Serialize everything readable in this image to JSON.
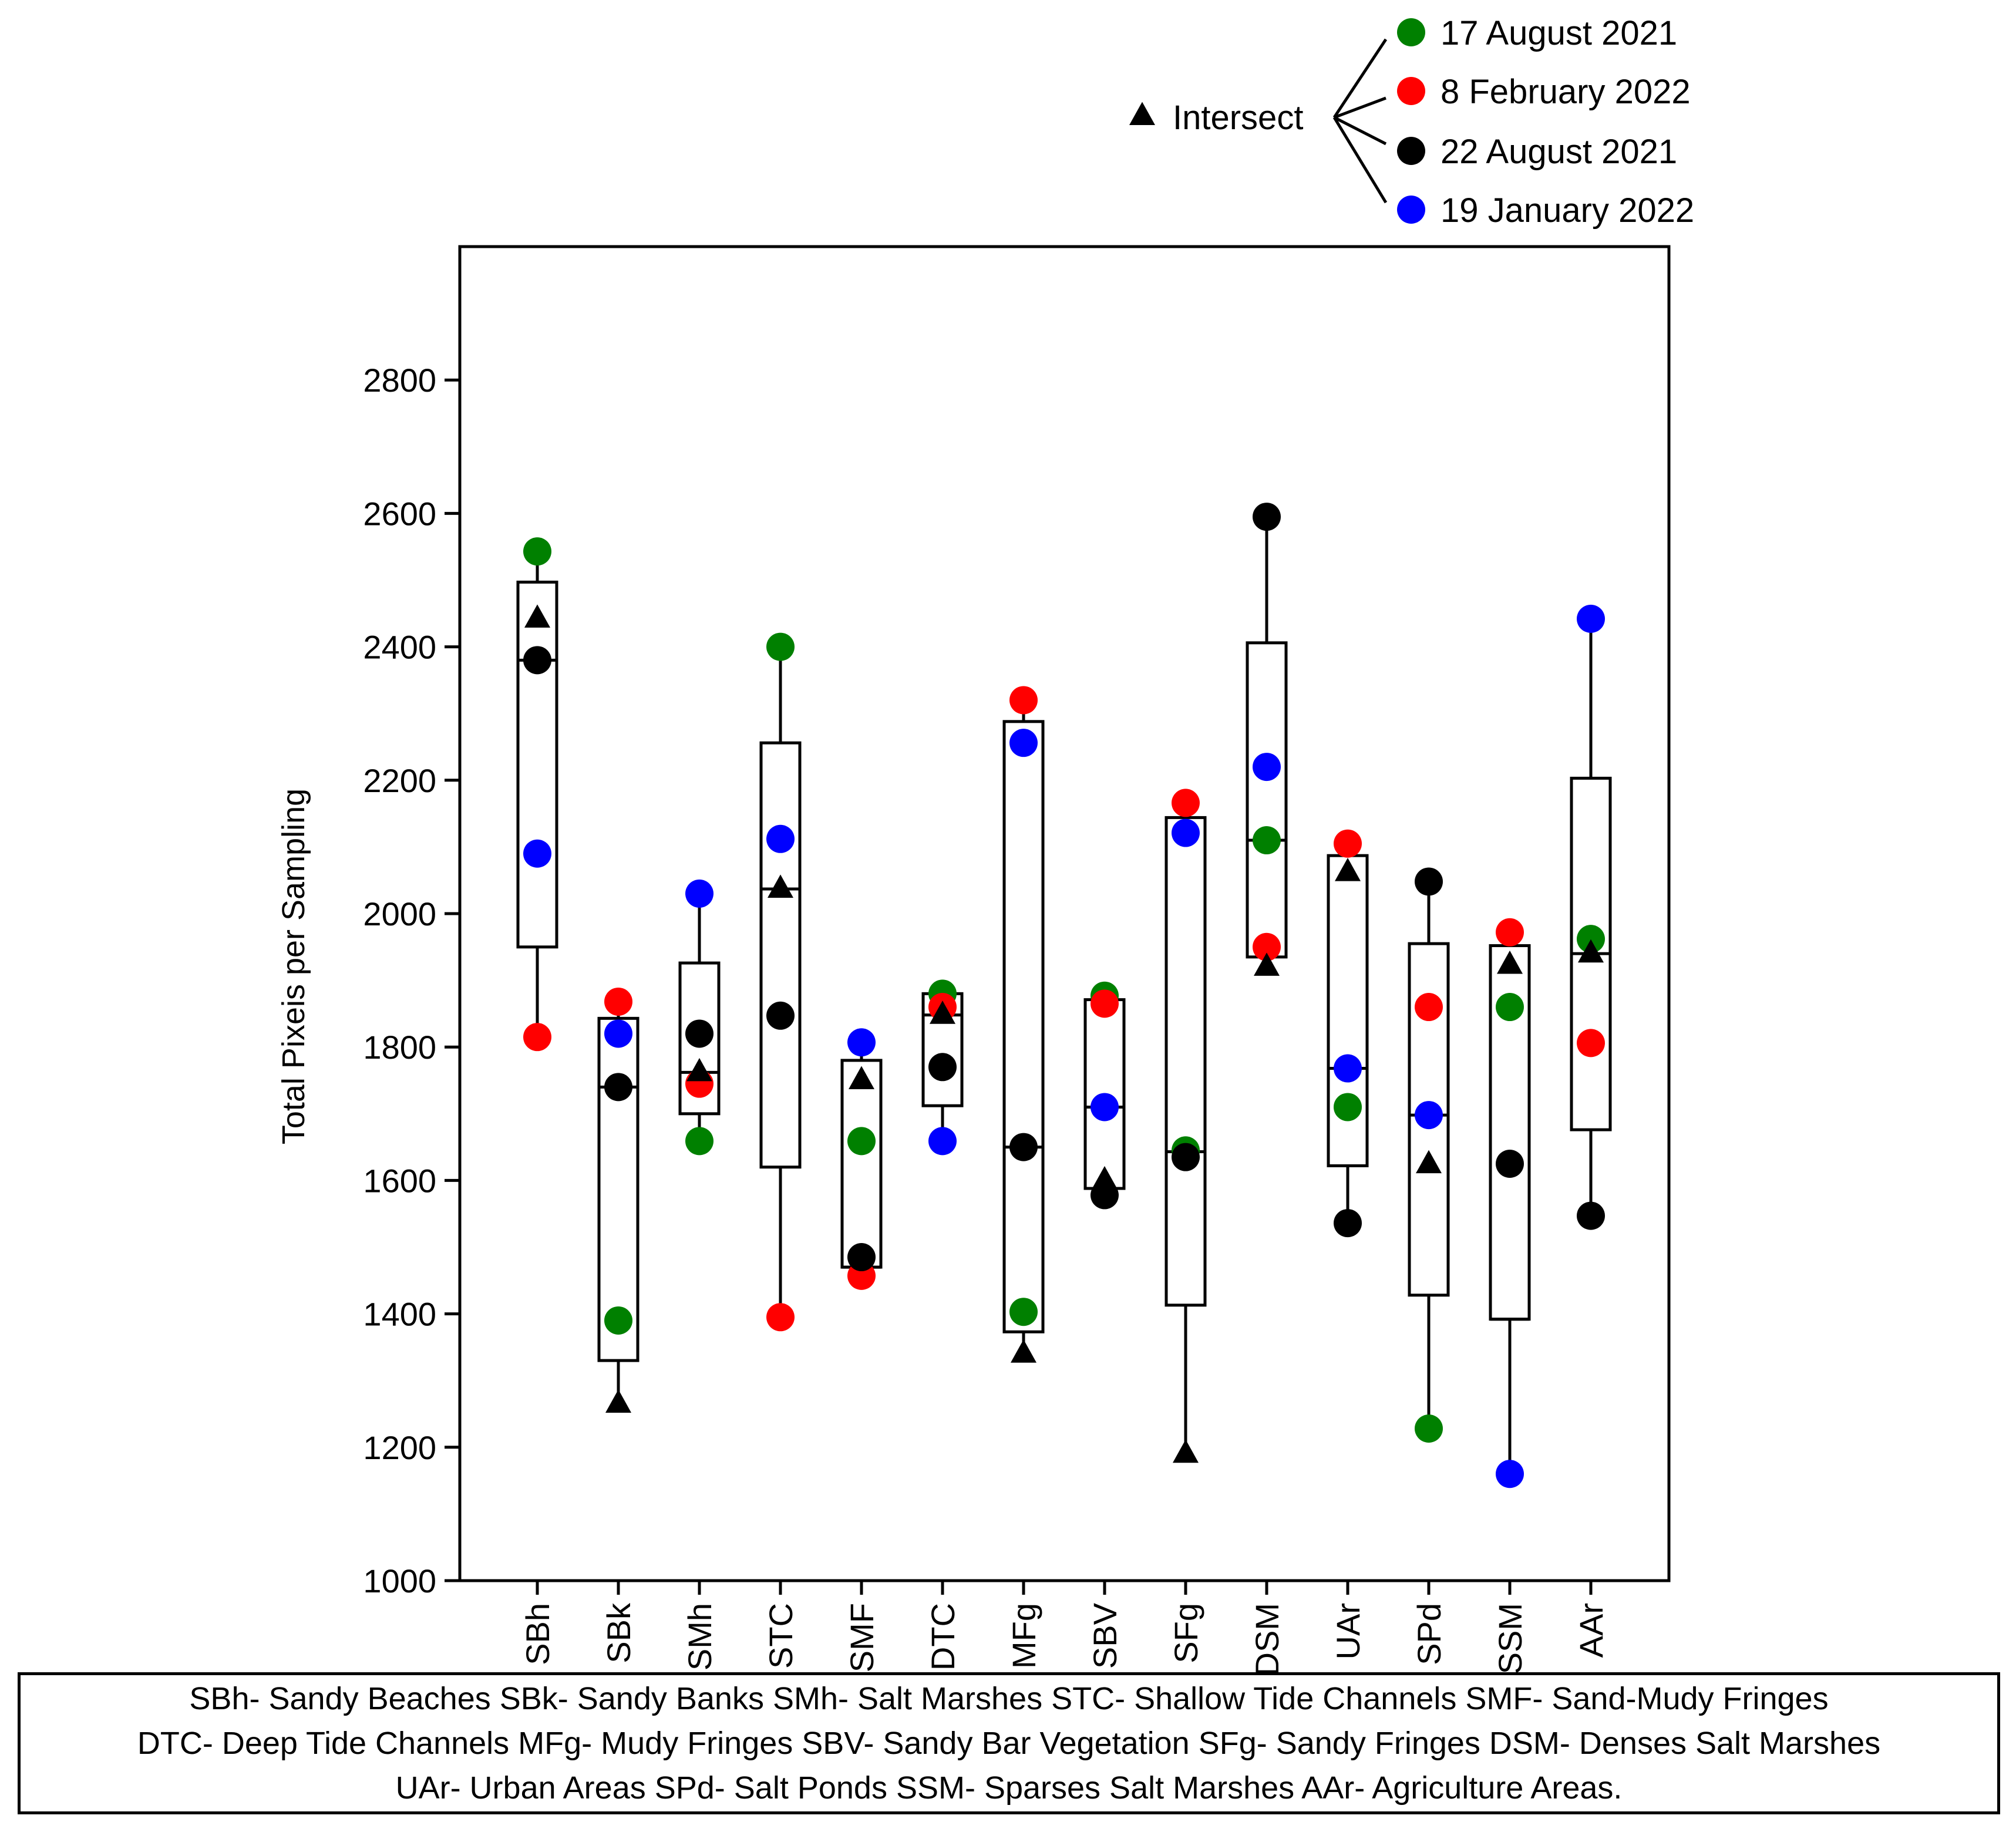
{
  "chart_data": {
    "type": "box",
    "title": "",
    "xlabel": "",
    "ylabel": "Total Pixeis per Sampling",
    "ylim": [
      1000,
      3000
    ],
    "yticks": [
      1000,
      1200,
      1400,
      1600,
      1800,
      2000,
      2200,
      2400,
      2600,
      2800
    ],
    "grid": false,
    "categories": [
      "SBh",
      "SBk",
      "SMh",
      "STC",
      "SMF",
      "DTC",
      "MFg",
      "SBV",
      "SFg",
      "DSM",
      "UAr",
      "SPd",
      "SSM",
      "AAr"
    ],
    "boxes": [
      {
        "q1": 1950,
        "median": 2380,
        "q3": 2497,
        "wmin": 1815,
        "wmax": 2543
      },
      {
        "q1": 1330,
        "median": 1740,
        "q3": 1843,
        "wmin": 1265,
        "wmax": 1868
      },
      {
        "q1": 1700,
        "median": 1762,
        "q3": 1926,
        "wmin": 1659,
        "wmax": 2030
      },
      {
        "q1": 1620,
        "median": 2037,
        "q3": 2256,
        "wmin": 1395,
        "wmax": 2400
      },
      {
        "q1": 1470,
        "median": 1470,
        "q3": 1780,
        "wmin": 1457,
        "wmax": 1807
      },
      {
        "q1": 1712,
        "median": 1848,
        "q3": 1880,
        "wmin": 1659,
        "wmax": 1880
      },
      {
        "q1": 1373,
        "median": 1650,
        "q3": 2288,
        "wmin": 1340,
        "wmax": 2320
      },
      {
        "q1": 1588,
        "median": 1710,
        "q3": 1871,
        "wmin": 1578,
        "wmax": 1877
      },
      {
        "q1": 1413,
        "median": 1643,
        "q3": 2144,
        "wmin": 1190,
        "wmax": 2166
      },
      {
        "q1": 1935,
        "median": 2110,
        "q3": 2406,
        "wmin": 1920,
        "wmax": 2595
      },
      {
        "q1": 1622,
        "median": 1768,
        "q3": 2087,
        "wmin": 1536,
        "wmax": 2105
      },
      {
        "q1": 1428,
        "median": 1698,
        "q3": 1955,
        "wmin": 1228,
        "wmax": 2048
      },
      {
        "q1": 1392,
        "median": 1392,
        "q3": 1952,
        "wmin": 1160,
        "wmax": 1972
      },
      {
        "q1": 1676,
        "median": 1940,
        "q3": 2203,
        "wmin": 1547,
        "wmax": 2442
      }
    ],
    "series": [
      {
        "name": "17 August 2021",
        "color": "#008000",
        "marker": "circle",
        "values": [
          2543,
          1390,
          1659,
          2400,
          1659,
          1880,
          1403,
          1877,
          1645,
          2110,
          1710,
          1228,
          1860,
          1962
        ]
      },
      {
        "name": "8 February 2022",
        "color": "#ff0000",
        "marker": "circle",
        "values": [
          1815,
          1868,
          1745,
          1395,
          1457,
          1860,
          2320,
          1865,
          2166,
          1950,
          2105,
          1860,
          1972,
          1806
        ]
      },
      {
        "name": "22 August 2021",
        "color": "#000000",
        "marker": "circle",
        "values": [
          2380,
          1740,
          1820,
          1847,
          1485,
          1770,
          1650,
          1578,
          1635,
          2595,
          1536,
          2048,
          1625,
          1547
        ]
      },
      {
        "name": "19 January 2022",
        "color": "#0000ff",
        "marker": "circle",
        "values": [
          2090,
          1820,
          2030,
          2112,
          1807,
          1659,
          2256,
          1710,
          2121,
          2220,
          1768,
          1698,
          1160,
          2442
        ]
      },
      {
        "name": "Intersect",
        "color": "#000000",
        "marker": "triangle",
        "values": [
          2442,
          1265,
          1762,
          2037,
          1750,
          1848,
          1340,
          1600,
          1190,
          1920,
          2062,
          1624,
          1923,
          1940
        ]
      }
    ],
    "legend": {
      "intersect_label": "Intersect",
      "entries": [
        "17 August 2021",
        "8 February 2022",
        "22 August 2021",
        "19 January 2022"
      ],
      "placement": "top-right, above plot"
    }
  },
  "footer": {
    "lines": [
      "SBh- Sandy Beaches SBk- Sandy Banks SMh- Salt Marshes STC- Shallow Tide Channels SMF- Sand-Mudy Fringes",
      "DTC- Deep Tide Channels MFg- Mudy Fringes SBV- Sandy Bar Vegetation SFg- Sandy Fringes DSM- Denses Salt Marshes",
      "UAr- Urban Areas SPd- Salt Ponds SSM- Sparses Salt Marshes AAr- Agriculture Areas."
    ]
  }
}
